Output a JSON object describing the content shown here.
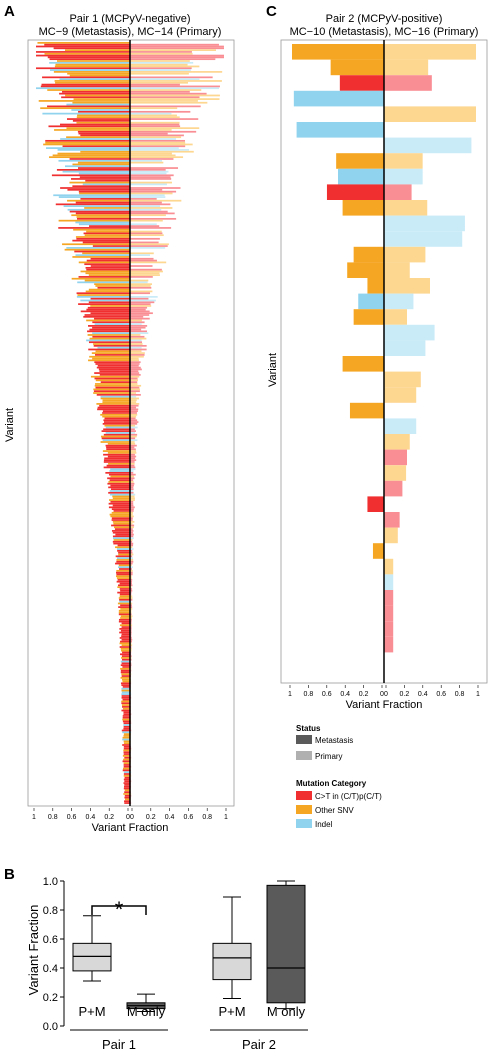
{
  "panels": {
    "a": {
      "letter": "A"
    },
    "b": {
      "letter": "B"
    },
    "c": {
      "letter": "C"
    }
  },
  "legend": {
    "status_title": "Status",
    "status_items": [
      {
        "label": "Metastasis",
        "color": "#5a5a5a"
      },
      {
        "label": "Primary",
        "color": "#b0b0b0"
      }
    ],
    "category_title": "Mutation Category",
    "category_items": [
      {
        "label": "C>T in (C/T)p(C/T)",
        "color": "#f03030"
      },
      {
        "label": "Other SNV",
        "color": "#f5a623"
      },
      {
        "label": "Indel",
        "color": "#8fd3ee"
      }
    ]
  },
  "chart_data": [
    {
      "id": "pair1",
      "type": "bar",
      "orientation": "horizontal-mirrored",
      "title_line1": "Pair 1 (MCPyV-negative)",
      "title_line2": "MC−9 (Metastasis), MC−14 (Primary)",
      "xlabel": "Variant Fraction",
      "ylabel": "Variant",
      "left_series": "Metastasis",
      "right_series": "Primary",
      "xlim": [
        0,
        1
      ],
      "xticks_left": [
        "1",
        "0.8",
        "0.6",
        "0.4",
        "0.2",
        "0"
      ],
      "xticks_right": [
        "0",
        "0.2",
        "0.4",
        "0.6",
        "0.8",
        "1"
      ],
      "n_variants": 420,
      "profile_note": "variants sorted by fraction; dense fan of C>T, Other SNV and Indel bars",
      "metastasis_fraction_samples": [
        0.95,
        0.82,
        0.75,
        0.68,
        0.62,
        0.55,
        0.48,
        0.42,
        0.36,
        0.3,
        0.25,
        0.2,
        0.15,
        0.12,
        0.1,
        0.09,
        0.08,
        0.07,
        0.06
      ],
      "primary_fraction_samples": [
        0.95,
        0.75,
        0.55,
        0.45,
        0.38,
        0.3,
        0.22,
        0.15,
        0.1,
        0.07,
        0.05,
        0.04,
        0.03,
        0.02,
        0.02,
        0.01,
        0.01,
        0.01,
        0.01
      ]
    },
    {
      "id": "pair2",
      "type": "bar",
      "orientation": "horizontal-mirrored",
      "title_line1": "Pair 2 (MCPyV-positive)",
      "title_line2": "MC−10 (Metastasis), MC−16 (Primary)",
      "xlabel": "Variant Fraction",
      "ylabel": "Variant",
      "left_series": "Metastasis",
      "right_series": "Primary",
      "xlim": [
        0,
        1
      ],
      "xticks_left": [
        "1",
        "0.8",
        "0.6",
        "0.4",
        "0.2",
        "0"
      ],
      "xticks_right": [
        "0",
        "0.2",
        "0.4",
        "0.6",
        "0.8",
        "1"
      ],
      "variants": [
        {
          "cat": "snv",
          "m": 1.0,
          "p": 1.0
        },
        {
          "cat": "snv",
          "m": 0.58,
          "p": 0.48
        },
        {
          "cat": "ct",
          "m": 0.48,
          "p": 0.52
        },
        {
          "cat": "indel",
          "m": 0.98,
          "p": 0.0
        },
        {
          "cat": "snv",
          "m": 0.0,
          "p": 1.0
        },
        {
          "cat": "indel",
          "m": 0.95,
          "p": 0.0
        },
        {
          "cat": "indel",
          "m": 0.0,
          "p": 0.95
        },
        {
          "cat": "snv",
          "m": 0.52,
          "p": 0.42
        },
        {
          "cat": "indel",
          "m": 0.5,
          "p": 0.42
        },
        {
          "cat": "ct",
          "m": 0.62,
          "p": 0.3
        },
        {
          "cat": "snv",
          "m": 0.45,
          "p": 0.47
        },
        {
          "cat": "indel",
          "m": 0.0,
          "p": 0.88
        },
        {
          "cat": "indel",
          "m": 0.0,
          "p": 0.85
        },
        {
          "cat": "snv",
          "m": 0.33,
          "p": 0.45
        },
        {
          "cat": "snv",
          "m": 0.4,
          "p": 0.28
        },
        {
          "cat": "snv",
          "m": 0.18,
          "p": 0.5
        },
        {
          "cat": "indel",
          "m": 0.28,
          "p": 0.32
        },
        {
          "cat": "snv",
          "m": 0.33,
          "p": 0.25
        },
        {
          "cat": "indel",
          "m": 0.0,
          "p": 0.55
        },
        {
          "cat": "indel",
          "m": 0.0,
          "p": 0.45
        },
        {
          "cat": "snv",
          "m": 0.45,
          "p": 0.0
        },
        {
          "cat": "snv",
          "m": 0.0,
          "p": 0.4
        },
        {
          "cat": "snv",
          "m": 0.0,
          "p": 0.35
        },
        {
          "cat": "snv",
          "m": 0.37,
          "p": 0.0
        },
        {
          "cat": "indel",
          "m": 0.0,
          "p": 0.35
        },
        {
          "cat": "snv",
          "m": 0.0,
          "p": 0.28
        },
        {
          "cat": "ct",
          "m": 0.0,
          "p": 0.25
        },
        {
          "cat": "snv",
          "m": 0.0,
          "p": 0.24
        },
        {
          "cat": "ct",
          "m": 0.0,
          "p": 0.2
        },
        {
          "cat": "ct",
          "m": 0.18,
          "p": 0.0
        },
        {
          "cat": "ct",
          "m": 0.0,
          "p": 0.17
        },
        {
          "cat": "snv",
          "m": 0.0,
          "p": 0.15
        },
        {
          "cat": "snv",
          "m": 0.12,
          "p": 0.0
        },
        {
          "cat": "snv",
          "m": 0.0,
          "p": 0.1
        },
        {
          "cat": "indel",
          "m": 0.0,
          "p": 0.1
        },
        {
          "cat": "ct",
          "m": 0.0,
          "p": 0.1
        },
        {
          "cat": "ct",
          "m": 0.0,
          "p": 0.1
        },
        {
          "cat": "ct",
          "m": 0.0,
          "p": 0.1
        },
        {
          "cat": "ct",
          "m": 0.0,
          "p": 0.1
        }
      ]
    },
    {
      "id": "boxplot",
      "type": "box",
      "ylabel": "Variant Fraction",
      "ylim": [
        0,
        1
      ],
      "yticks": [
        "0.0",
        "0.2",
        "0.4",
        "0.6",
        "0.8",
        "1.0"
      ],
      "groups": [
        {
          "name": "Pair 1",
          "boxes": [
            {
              "label": "P+M",
              "status": "Primary",
              "whisker_low": 0.31,
              "q1": 0.38,
              "median": 0.48,
              "q3": 0.57,
              "whisker_high": 0.76
            },
            {
              "label": "M only",
              "status": "Metastasis",
              "whisker_low": 0.1,
              "q1": 0.12,
              "median": 0.14,
              "q3": 0.16,
              "whisker_high": 0.22
            }
          ],
          "significance": "*"
        },
        {
          "name": "Pair 2",
          "boxes": [
            {
              "label": "P+M",
              "status": "Primary",
              "whisker_low": 0.19,
              "q1": 0.32,
              "median": 0.47,
              "q3": 0.57,
              "whisker_high": 0.89
            },
            {
              "label": "M only",
              "status": "Metastasis",
              "whisker_low": 0.12,
              "q1": 0.16,
              "median": 0.4,
              "q3": 0.97,
              "whisker_high": 1.0
            }
          ]
        }
      ]
    }
  ]
}
